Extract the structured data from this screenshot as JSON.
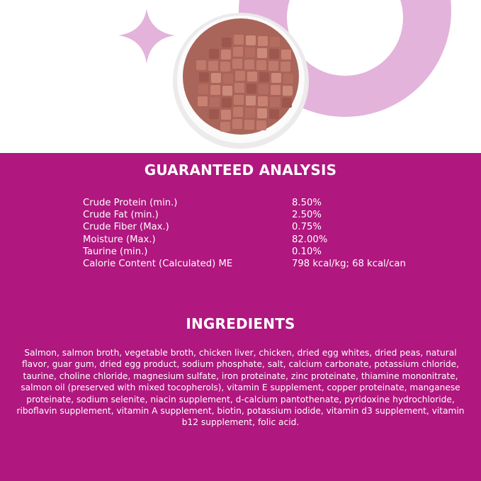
{
  "colors": {
    "brand": "#B0177F",
    "accent_light": "#E3B3DB"
  },
  "image": {
    "icon": "bowl-of-wet-cat-food"
  },
  "analysis": {
    "title": "GUARANTEED ANALYSIS",
    "rows": [
      {
        "label": "Crude Protein (min.)",
        "value": "8.50%"
      },
      {
        "label": "Crude Fat (min.)",
        "value": "2.50%"
      },
      {
        "label": "Crude Fiber (Max.)",
        "value": "0.75%"
      },
      {
        "label": "Moisture (Max.)",
        "value": "82.00%"
      },
      {
        "label": "Taurine (min.)",
        "value": "0.10%"
      },
      {
        "label": "Calorie Content (Calculated) ME",
        "value": "798 kcal/kg; 68 kcal/can"
      }
    ]
  },
  "ingredients": {
    "title": "INGREDIENTS",
    "text": "Salmon, salmon broth, vegetable broth, chicken liver, chicken, dried egg whites, dried peas, natural flavor, guar gum, dried egg product, sodium phosphate, salt, calcium carbonate, potassium chloride, taurine, choline chloride, magnesium sulfate, iron proteinate, zinc proteinate, thiamine mononitrate, salmon oil (preserved with mixed tocopherols), vitamin E supplement, copper proteinate, manganese proteinate, sodium selenite, niacin supplement, d-calcium pantothenate, pyridoxine hydrochloride, riboflavin supplement, vitamin A supplement, biotin, potassium iodide, vitamin d3 supplement, vitamin b12 supplement, folic acid."
  }
}
